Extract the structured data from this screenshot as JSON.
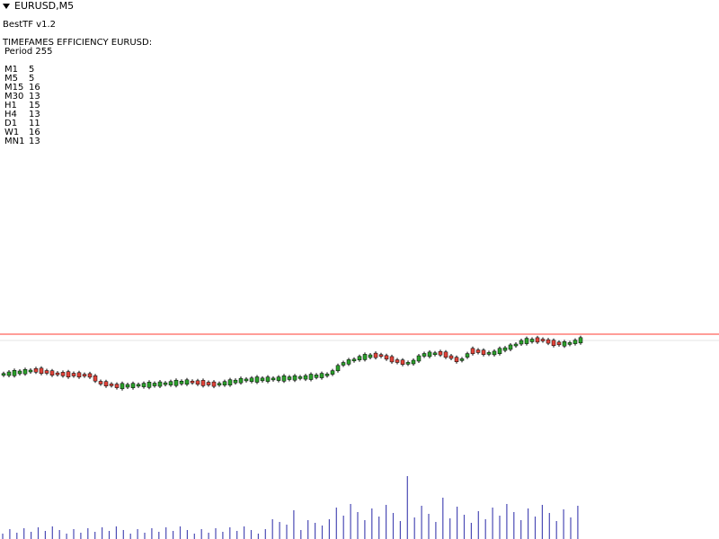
{
  "window": {
    "symbol_title": "EURUSD,M5",
    "collapse_icon": "triangle-down-icon"
  },
  "indicator": {
    "name": "BestTF v1.2",
    "heading": "TIMEFAMES EFFICIENCY EURUSD:",
    "period": " Period 255",
    "rows": [
      {
        "tf": "M1",
        "value": "5"
      },
      {
        "tf": "M5",
        "value": "5"
      },
      {
        "tf": "M15",
        "value": "16"
      },
      {
        "tf": "M30",
        "value": "13"
      },
      {
        "tf": "H1",
        "value": "15"
      },
      {
        "tf": "H4",
        "value": "13"
      },
      {
        "tf": "D1",
        "value": "11"
      },
      {
        "tf": "W1",
        "value": "16"
      },
      {
        "tf": "MN1",
        "value": "13"
      }
    ]
  },
  "colors": {
    "bull_candle": "#2ca02c",
    "bear_candle": "#e0443a",
    "price_line": "#ff3b30",
    "grid_line": "#e6e6e6",
    "volume_bar": "#4b4bb5"
  }
}
